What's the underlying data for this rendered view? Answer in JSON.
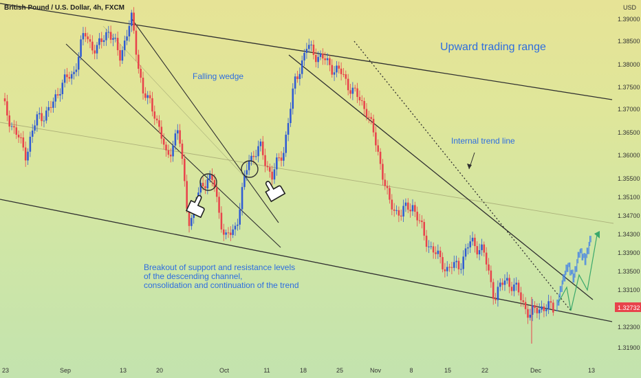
{
  "header": {
    "symbol_title": "British Pound / U.S. Dollar, 4h, FXCM",
    "currency_label": "USD",
    "last_price": "1.32732"
  },
  "colors": {
    "up": "#2f5bd3",
    "down": "#e8434b",
    "projection": "#3f7fe8",
    "line": "#2f2f2f",
    "annotation_text": "#2d6de0",
    "price_badge": "#e8434b",
    "projection_arrow": "#3aa86b"
  },
  "annotations": {
    "falling_wedge": "Falling wedge",
    "upward_range": "Upward trading range",
    "internal_trend": "Internal trend line",
    "breakout_line1": "Breakout of support and resistance levels",
    "breakout_line2": "of the descending channel,",
    "breakout_line3": "consolidation and continuation of the trend"
  },
  "icons": [
    "pointing-hand-icon",
    "pointing-hand-icon"
  ],
  "chart_data": {
    "type": "candlestick",
    "title": "British Pound / U.S. Dollar, 4h, FXCM",
    "y_axis": {
      "label": "USD",
      "ticks": [
        "1.39000",
        "1.38500",
        "1.38000",
        "1.37500",
        "1.37000",
        "1.36500",
        "1.36000",
        "1.35500",
        "1.35100",
        "1.34700",
        "1.34300",
        "1.33900",
        "1.33500",
        "1.33100",
        "1.32300",
        "1.31900"
      ]
    },
    "x_axis": {
      "ticks": [
        "23",
        "Sep",
        "13",
        "20",
        "Oct",
        "11",
        "18",
        "25",
        "Nov",
        "8",
        "15",
        "22",
        "Dec",
        "13"
      ]
    },
    "last_price": 1.32732,
    "price_path": [
      [
        1.372,
        1.366
      ],
      [
        1.361,
        1.369
      ],
      [
        1.37,
        1.376
      ],
      [
        1.378,
        1.387
      ],
      [
        1.383,
        1.388
      ],
      [
        1.382,
        1.39
      ],
      [
        1.374,
        1.37
      ],
      [
        1.36,
        1.366
      ],
      [
        1.345,
        1.355
      ],
      [
        1.355,
        1.342
      ],
      [
        1.346,
        1.36
      ],
      [
        1.362,
        1.356
      ],
      [
        1.362,
        1.377
      ],
      [
        1.384,
        1.382
      ],
      [
        1.38,
        1.378
      ],
      [
        1.374,
        1.371
      ],
      [
        1.362,
        1.35
      ],
      [
        1.348,
        1.35
      ],
      [
        1.343,
        1.339
      ],
      [
        1.336,
        1.337
      ],
      [
        1.342,
        1.34
      ],
      [
        1.33,
        1.334
      ],
      [
        1.331,
        1.326
      ],
      [
        1.328,
        1.3273
      ]
    ],
    "projection_path": [
      1.3273,
      1.333,
      1.337,
      1.334,
      1.34,
      1.338,
      1.343
    ]
  }
}
